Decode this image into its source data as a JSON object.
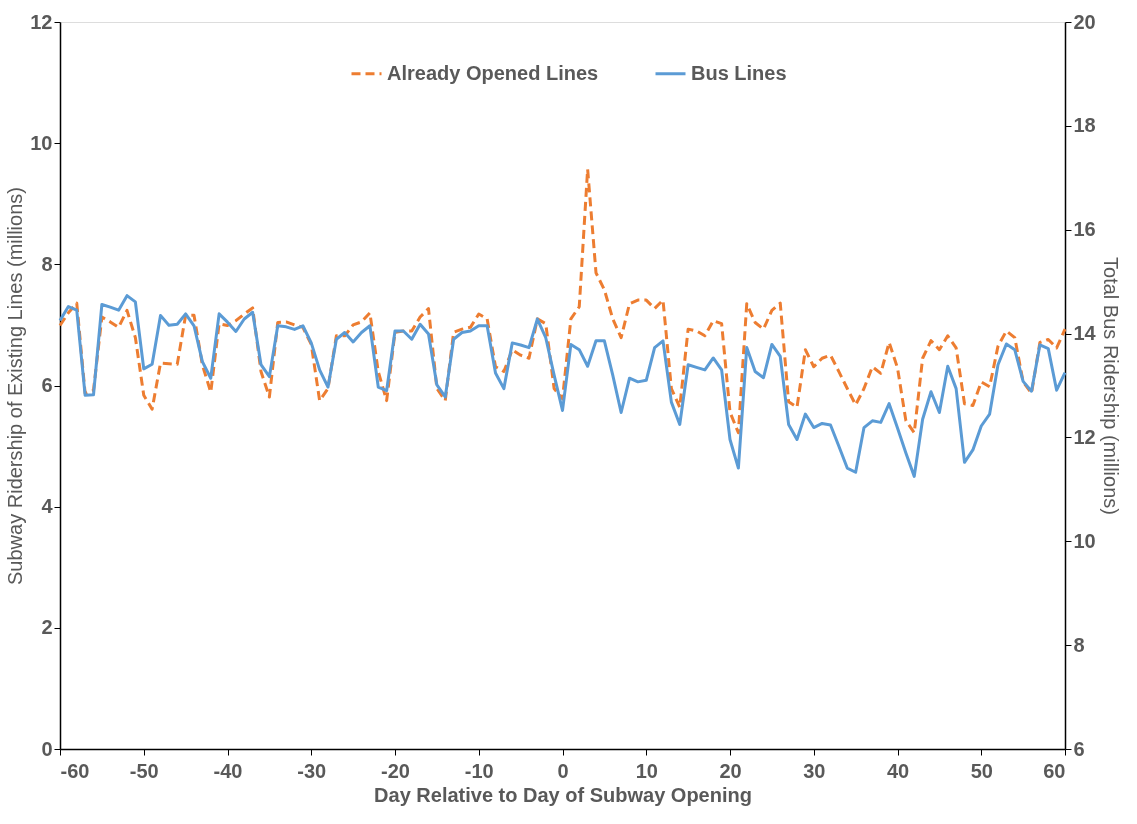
{
  "chart_data": {
    "type": "line",
    "xlabel": "Day Relative to Day of Subway Opening",
    "ylabel": "Subway Ridership of Existing Lines (millions)",
    "y2label": "Total Bus Ridership (millions)",
    "x": [
      -60,
      -59,
      -58,
      -57,
      -56,
      -55,
      -54,
      -53,
      -52,
      -51,
      -50,
      -49,
      -48,
      -47,
      -46,
      -45,
      -44,
      -43,
      -42,
      -41,
      -40,
      -39,
      -38,
      -37,
      -36,
      -35,
      -34,
      -33,
      -32,
      -31,
      -30,
      -29,
      -28,
      -27,
      -26,
      -25,
      -24,
      -23,
      -22,
      -21,
      -20,
      -19,
      -18,
      -17,
      -16,
      -15,
      -14,
      -13,
      -12,
      -11,
      -10,
      -9,
      -8,
      -7,
      -6,
      -5,
      -4,
      -3,
      -2,
      -1,
      0,
      1,
      2,
      3,
      4,
      5,
      6,
      7,
      8,
      9,
      10,
      11,
      12,
      13,
      14,
      15,
      16,
      17,
      18,
      19,
      20,
      21,
      22,
      23,
      24,
      25,
      26,
      27,
      28,
      29,
      30,
      31,
      32,
      33,
      34,
      35,
      36,
      37,
      38,
      39,
      40,
      41,
      42,
      43,
      44,
      45,
      46,
      47,
      48,
      49,
      50,
      51,
      52,
      53,
      54,
      55,
      56,
      57,
      58,
      59,
      60
    ],
    "series": [
      {
        "name": "Already Opened Lines",
        "color": "#ed7d31",
        "line_style": "dashed",
        "values": [
          6.99,
          7.2,
          7.36,
          5.87,
          5.92,
          7.13,
          7.05,
          6.96,
          7.24,
          6.79,
          5.84,
          5.61,
          6.37,
          6.36,
          6.35,
          7.16,
          7.16,
          6.34,
          5.89,
          7.02,
          6.99,
          7.07,
          7.18,
          7.28,
          6.23,
          5.81,
          7.04,
          7.05,
          7.0,
          6.96,
          6.68,
          5.75,
          5.95,
          6.82,
          6.82,
          7.0,
          7.05,
          7.2,
          6.23,
          5.75,
          6.88,
          6.9,
          6.9,
          7.13,
          7.27,
          5.95,
          5.75,
          6.88,
          6.93,
          6.96,
          7.18,
          7.1,
          6.31,
          6.23,
          6.59,
          6.5,
          6.45,
          7.1,
          7.02,
          5.95,
          5.78,
          7.1,
          7.3,
          9.57,
          7.86,
          7.58,
          7.1,
          6.79,
          7.35,
          7.41,
          7.41,
          7.27,
          7.41,
          5.95,
          5.64,
          6.93,
          6.9,
          6.82,
          7.07,
          7.02,
          5.56,
          5.22,
          7.35,
          7.04,
          6.93,
          7.24,
          7.36,
          5.73,
          5.64,
          6.59,
          6.31,
          6.45,
          6.5,
          6.23,
          5.95,
          5.68,
          5.95,
          6.31,
          6.2,
          6.71,
          6.29,
          5.42,
          5.22,
          6.45,
          6.74,
          6.59,
          6.82,
          6.62,
          5.7,
          5.67,
          6.06,
          5.98,
          6.65,
          6.9,
          6.79,
          6.06,
          5.87,
          6.71,
          6.76,
          6.62,
          6.93
        ]
      },
      {
        "name": "Bus Lines",
        "color": "#5b9bd5",
        "line_style": "solid",
        "axis": "y2",
        "values": [
          14.25,
          14.52,
          14.45,
          12.81,
          12.82,
          14.56,
          14.51,
          14.45,
          14.73,
          14.61,
          13.32,
          13.41,
          14.35,
          14.16,
          14.18,
          14.38,
          14.15,
          13.46,
          13.14,
          14.38,
          14.22,
          14.04,
          14.28,
          14.41,
          13.4,
          13.17,
          14.15,
          14.13,
          14.08,
          14.15,
          13.82,
          13.3,
          12.97,
          13.89,
          14.02,
          13.84,
          14.02,
          14.15,
          12.97,
          12.9,
          14.05,
          14.05,
          13.89,
          14.18,
          13.99,
          13.01,
          12.78,
          13.89,
          14.02,
          14.05,
          14.15,
          14.15,
          13.24,
          12.94,
          13.82,
          13.78,
          13.73,
          14.28,
          13.92,
          13.2,
          12.52,
          13.79,
          13.69,
          13.37,
          13.86,
          13.86,
          13.2,
          12.48,
          13.14,
          13.07,
          13.1,
          13.73,
          13.86,
          12.68,
          12.25,
          13.4,
          13.35,
          13.3,
          13.53,
          13.3,
          11.96,
          11.41,
          13.73,
          13.27,
          13.15,
          13.79,
          13.56,
          12.25,
          11.96,
          12.45,
          12.19,
          12.27,
          12.24,
          11.83,
          11.41,
          11.33,
          12.19,
          12.32,
          12.29,
          12.65,
          12.18,
          11.7,
          11.25,
          12.35,
          12.88,
          12.48,
          13.37,
          12.94,
          11.52,
          11.76,
          12.22,
          12.45,
          13.4,
          13.8,
          13.69,
          13.08,
          12.89,
          13.78,
          13.71,
          12.91,
          13.25
        ]
      }
    ],
    "xlim": [
      -60,
      60
    ],
    "xticks": [
      -60,
      -50,
      -40,
      -30,
      -20,
      -10,
      0,
      10,
      20,
      30,
      40,
      50,
      60
    ],
    "ylim": [
      0,
      12
    ],
    "yticks": [
      0,
      2,
      4,
      6,
      8,
      10,
      12
    ],
    "y2lim": [
      6,
      20
    ],
    "y2ticks": [
      6,
      8,
      10,
      12,
      14,
      16,
      18,
      20
    ],
    "grid": false,
    "legend": "top",
    "marker": "none"
  }
}
